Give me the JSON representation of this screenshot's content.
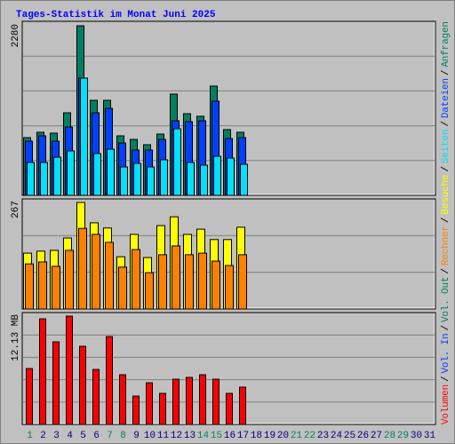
{
  "legend_separator": "/",
  "chart_data": [
    {
      "type": "bar",
      "title": "Tages-Statistik im Monat Juni 2025",
      "ylim": [
        0,
        2280
      ],
      "yticks": [
        2280
      ],
      "series": [
        {
          "name": "Anfragen",
          "color": "#008060",
          "values": [
            776,
            848,
            836,
            1110,
            2280,
            1278,
            1278,
            800,
            752,
            681,
            824,
            1361,
            1098,
            1063,
            1469,
            884,
            848,
            null,
            null,
            null,
            null,
            null,
            null,
            null,
            null,
            null,
            null,
            null,
            null,
            null,
            null
          ]
        },
        {
          "name": "Dateien",
          "color": "#0040ff",
          "values": [
            728,
            800,
            728,
            919,
            1576,
            1110,
            1170,
            704,
            609,
            609,
            752,
            1003,
            991,
            1003,
            1266,
            764,
            776,
            null,
            null,
            null,
            null,
            null,
            null,
            null,
            null,
            null,
            null,
            null,
            null,
            null,
            null
          ]
        },
        {
          "name": "Seiten",
          "color": "#00e0ff",
          "values": [
            442,
            442,
            513,
            597,
            1576,
            561,
            621,
            382,
            430,
            382,
            478,
            895,
            442,
            406,
            525,
            501,
            418,
            null,
            null,
            null,
            null,
            null,
            null,
            null,
            null,
            null,
            null,
            null,
            null,
            null,
            null
          ]
        }
      ]
    },
    {
      "type": "bar",
      "ylim": [
        0,
        267
      ],
      "yticks": [
        267
      ],
      "series": [
        {
          "name": "Besuche",
          "color": "#ffff00",
          "values": [
            140,
            145,
            147,
            178,
            267,
            216,
            203,
            131,
            187,
            129,
            209,
            231,
            187,
            200,
            174,
            174,
            205,
            null,
            null,
            null,
            null,
            null,
            null,
            null,
            null,
            null,
            null,
            null,
            null,
            null,
            null
          ]
        },
        {
          "name": "Rechner",
          "color": "#ff8000",
          "values": [
            113,
            118,
            107,
            147,
            202,
            187,
            167,
            105,
            149,
            91,
            136,
            158,
            136,
            140,
            120,
            109,
            136,
            null,
            null,
            null,
            null,
            null,
            null,
            null,
            null,
            null,
            null,
            null,
            null,
            null,
            null
          ]
        }
      ]
    },
    {
      "type": "bar",
      "ylim": [
        0,
        12.13
      ],
      "yticks": [
        {
          "value": 12.13,
          "label": "12.13 MB"
        }
      ],
      "categories": [
        "1",
        "2",
        "3",
        "4",
        "5",
        "6",
        "7",
        "8",
        "9",
        "10",
        "11",
        "12",
        "13",
        "14",
        "15",
        "16",
        "17",
        "18",
        "19",
        "20",
        "21",
        "22",
        "23",
        "24",
        "25",
        "26",
        "27",
        "28",
        "29",
        "30",
        "31"
      ],
      "category_colors": [
        "#008060",
        "#000080",
        "#000080",
        "#000080",
        "#000080",
        "#000080",
        "#008060",
        "#008060",
        "#000080",
        "#000080",
        "#000080",
        "#000080",
        "#000080",
        "#008060",
        "#008060",
        "#000080",
        "#000080",
        "#000080",
        "#000080",
        "#000080",
        "#008060",
        "#008060",
        "#000080",
        "#000080",
        "#000080",
        "#000080",
        "#000080",
        "#008060",
        "#008060",
        "#000080",
        "#000080"
      ],
      "series": [
        {
          "name": "Volumen",
          "color": "#ff0000",
          "values": [
            6.26,
            11.83,
            9.25,
            12.13,
            8.75,
            6.16,
            9.84,
            5.57,
            3.18,
            4.67,
            3.48,
            5.07,
            5.27,
            5.57,
            5.07,
            3.48,
            4.18,
            null,
            null,
            null,
            null,
            null,
            null,
            null,
            null,
            null,
            null,
            null,
            null,
            null,
            null
          ]
        },
        {
          "name": "Vol. In",
          "color": "#0040ff",
          "values": [
            null,
            null,
            null,
            null,
            null,
            null,
            null,
            null,
            null,
            null,
            null,
            null,
            null,
            null,
            null,
            null,
            null,
            null,
            null,
            null,
            null,
            null,
            null,
            null,
            null,
            null,
            null,
            null,
            null,
            null,
            null
          ]
        },
        {
          "name": "Vol. Out",
          "color": "#008060",
          "values": [
            null,
            null,
            null,
            null,
            null,
            null,
            null,
            null,
            null,
            null,
            null,
            null,
            null,
            null,
            null,
            null,
            null,
            null,
            null,
            null,
            null,
            null,
            null,
            null,
            null,
            null,
            null,
            null,
            null,
            null,
            null
          ]
        }
      ]
    }
  ]
}
